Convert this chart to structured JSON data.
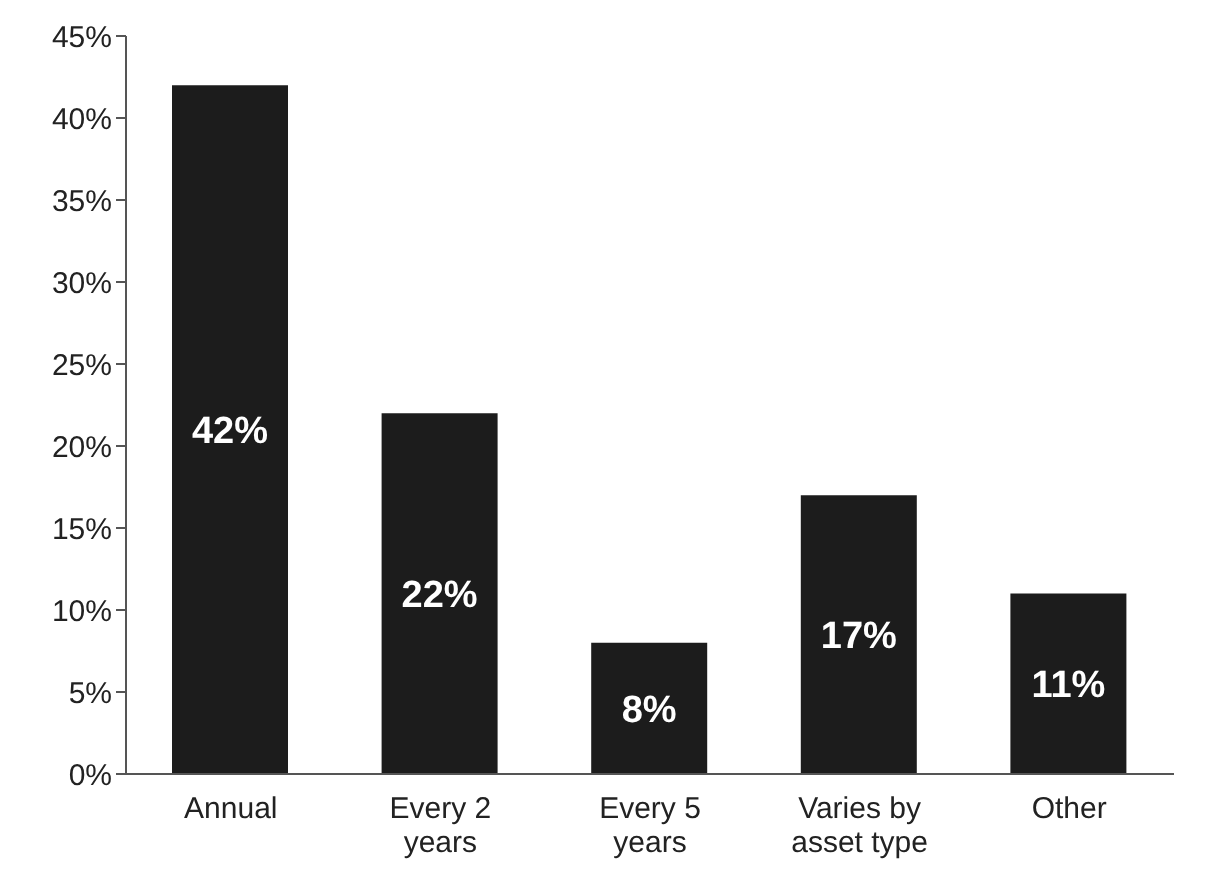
{
  "chart_data": {
    "type": "bar",
    "categories": [
      "Annual",
      "Every 2 years",
      "Every 5 years",
      "Varies by asset type",
      "Other"
    ],
    "values": [
      42,
      22,
      8,
      17,
      11
    ],
    "value_labels": [
      "42%",
      "22%",
      "8%",
      "17%",
      "11%"
    ],
    "color": "#1c1c1c",
    "ylim": [
      0,
      45
    ],
    "yticks": [
      {
        "value": 0,
        "label": "0%"
      },
      {
        "value": 5,
        "label": "5%"
      },
      {
        "value": 10,
        "label": "10%"
      },
      {
        "value": 15,
        "label": "15%"
      },
      {
        "value": 20,
        "label": "20%"
      },
      {
        "value": 25,
        "label": "25%"
      },
      {
        "value": 30,
        "label": "30%"
      },
      {
        "value": 35,
        "label": "35%"
      },
      {
        "value": 40,
        "label": "40%"
      },
      {
        "value": 45,
        "label": "45%"
      }
    ],
    "grid": false,
    "legend": false
  }
}
